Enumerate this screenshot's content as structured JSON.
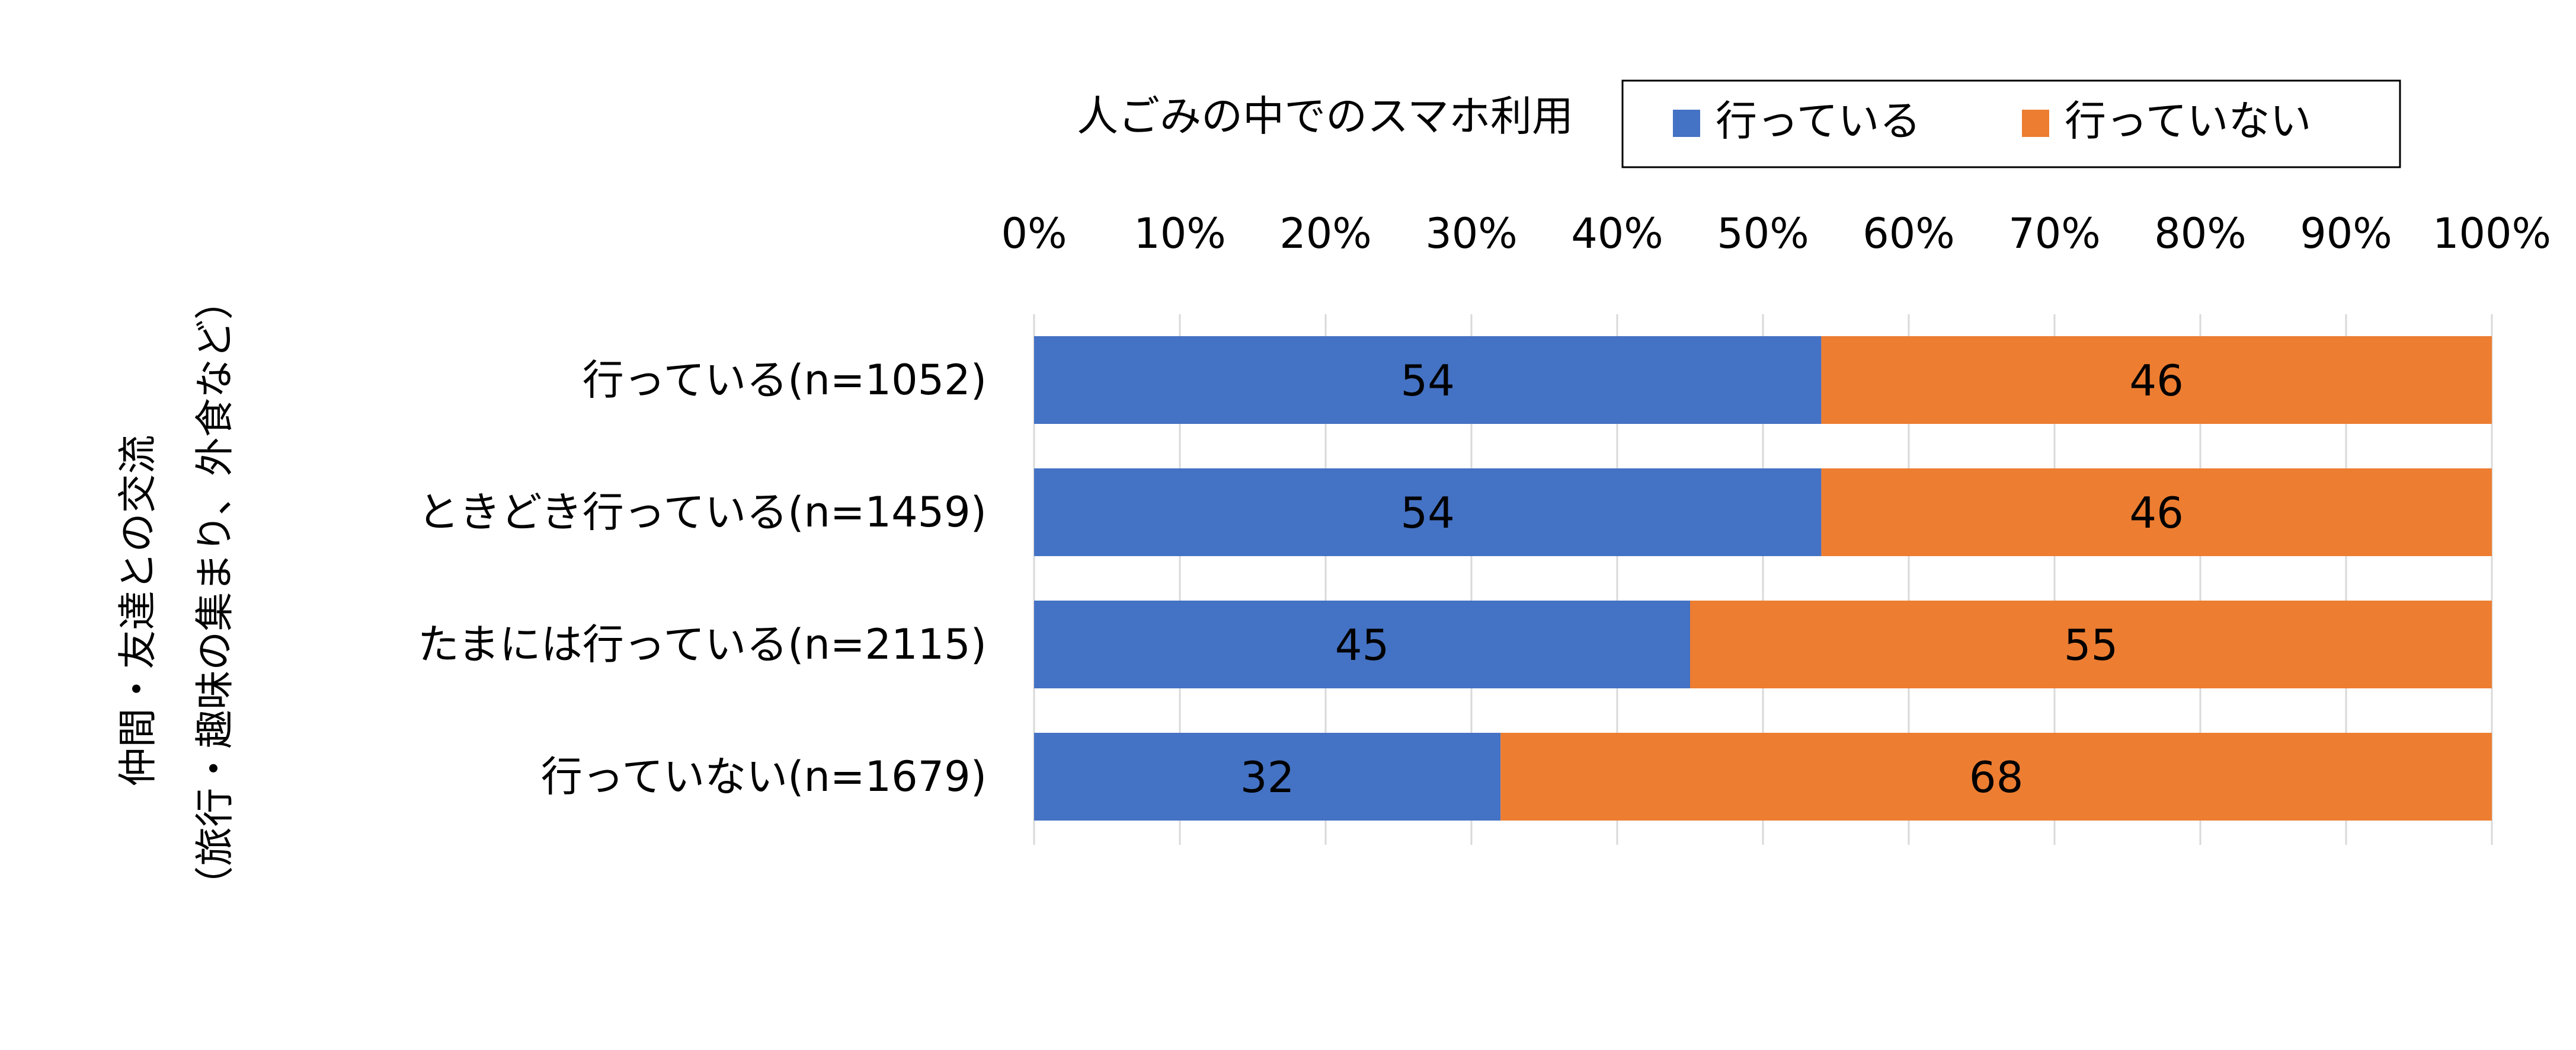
{
  "chart_data": {
    "type": "bar",
    "orientation": "horizontal",
    "stacked": "percent",
    "legend_title": "人ごみの中でのスマホ利用",
    "legend_position": "top-right",
    "ylabel_lines": [
      "仲間・友達との交流",
      "（旅行・趣味の集まり、外食など）"
    ],
    "xlim": [
      0,
      100
    ],
    "x_ticks": [
      "0%",
      "10%",
      "20%",
      "30%",
      "40%",
      "50%",
      "60%",
      "70%",
      "80%",
      "90%",
      "100%"
    ],
    "grid": true,
    "categories": [
      "行っている(n=1052)",
      "ときどき行っている(n=1459)",
      "たまには行っている(n=2115)",
      "行っていない(n=1679)"
    ],
    "series": [
      {
        "name": "行っている",
        "color": "#4472C4",
        "values": [
          54,
          54,
          45,
          32
        ]
      },
      {
        "name": "行っていない",
        "color": "#ED7D31",
        "values": [
          46,
          46,
          55,
          68
        ]
      }
    ]
  }
}
